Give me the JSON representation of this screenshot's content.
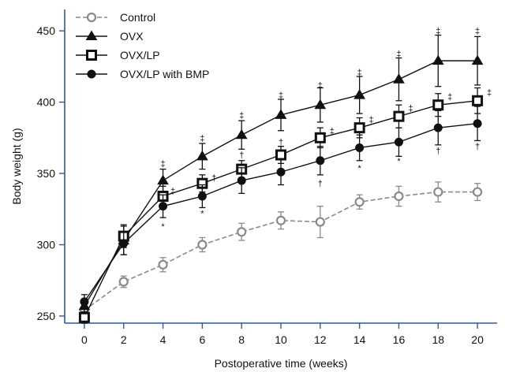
{
  "chart_data": {
    "type": "line",
    "xlabel": "Postoperative time (weeks)",
    "ylabel": "Body weight (g)",
    "xlim": [
      -1,
      21
    ],
    "ylim": [
      245,
      465
    ],
    "xticks": [
      0,
      2,
      4,
      6,
      8,
      10,
      12,
      14,
      16,
      18,
      20
    ],
    "yticks": [
      250,
      300,
      350,
      400,
      450
    ],
    "legend_position": "top-left",
    "grid": false,
    "x": [
      0,
      2,
      4,
      6,
      8,
      10,
      12,
      14,
      16,
      18,
      20
    ],
    "series": [
      {
        "name": "Control",
        "marker": "open-circle",
        "line_style": "dashed",
        "color": "#8a8a8a",
        "values": [
          254,
          274,
          286,
          300,
          309,
          317,
          316,
          330,
          334,
          337,
          337
        ],
        "errors": [
          4,
          4,
          5,
          5,
          6,
          6,
          11,
          5,
          7,
          7,
          6
        ]
      },
      {
        "name": "OVX",
        "marker": "filled-triangle",
        "line_style": "solid",
        "color": "#111111",
        "values": [
          257,
          303,
          345,
          362,
          377,
          391,
          398,
          405,
          416,
          429,
          429
        ],
        "errors": [
          5,
          10,
          8,
          9,
          10,
          11,
          12,
          13,
          15,
          18,
          17
        ]
      },
      {
        "name": "OVX/LP",
        "marker": "open-square",
        "line_style": "solid",
        "color": "#111111",
        "values": [
          249,
          306,
          334,
          343,
          353,
          363,
          375,
          382,
          390,
          398,
          401
        ],
        "errors": [
          4,
          8,
          7,
          6,
          6,
          6,
          7,
          7,
          8,
          8,
          9
        ]
      },
      {
        "name": "OVX/LP with BMP",
        "marker": "filled-circle",
        "line_style": "solid",
        "color": "#111111",
        "values": [
          260,
          301,
          327,
          334,
          345,
          351,
          359,
          368,
          372,
          382,
          385
        ],
        "errors": [
          5,
          8,
          8,
          8,
          9,
          9,
          10,
          9,
          10,
          12,
          12
        ]
      }
    ],
    "annotations": [
      {
        "text": "‡",
        "x": 4,
        "y": 357
      },
      {
        "text": "‡",
        "x": 4.5,
        "y": 338
      },
      {
        "text": "*",
        "x": 4,
        "y": 313
      },
      {
        "text": "‡",
        "x": 6,
        "y": 375
      },
      {
        "text": "†",
        "x": 6.6,
        "y": 347
      },
      {
        "text": "*",
        "x": 6,
        "y": 322
      },
      {
        "text": "‡",
        "x": 8,
        "y": 391
      },
      {
        "text": "†",
        "x": 8,
        "y": 363
      },
      {
        "text": "‡",
        "x": 10,
        "y": 405
      },
      {
        "text": "†",
        "x": 10,
        "y": 372
      },
      {
        "text": "‡",
        "x": 12,
        "y": 412
      },
      {
        "text": "‡",
        "x": 12.6,
        "y": 380
      },
      {
        "text": "†",
        "x": 12,
        "y": 343
      },
      {
        "text": "‡",
        "x": 14,
        "y": 421
      },
      {
        "text": "‡",
        "x": 14.6,
        "y": 388
      },
      {
        "text": "*",
        "x": 14,
        "y": 354
      },
      {
        "text": "‡",
        "x": 16,
        "y": 434
      },
      {
        "text": "‡",
        "x": 16.6,
        "y": 396
      },
      {
        "text": "*",
        "x": 16,
        "y": 359
      },
      {
        "text": "‡",
        "x": 18,
        "y": 450
      },
      {
        "text": "‡",
        "x": 18.6,
        "y": 404
      },
      {
        "text": "†",
        "x": 18,
        "y": 366
      },
      {
        "text": "‡",
        "x": 20,
        "y": 450
      },
      {
        "text": "‡",
        "x": 20.6,
        "y": 407
      },
      {
        "text": "†",
        "x": 20,
        "y": 369
      }
    ]
  }
}
